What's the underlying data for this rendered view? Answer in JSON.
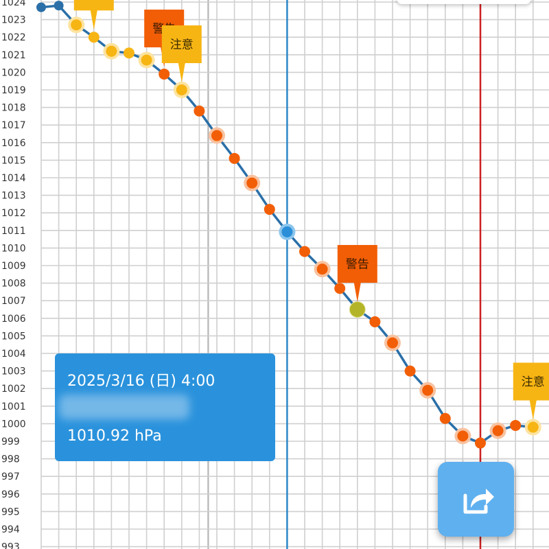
{
  "chart_data": {
    "type": "line",
    "ylim": [
      993,
      1024
    ],
    "y_ticks": [
      1024,
      1023,
      1022,
      1021,
      1020,
      1019,
      1018,
      1017,
      1016,
      1015,
      1014,
      1013,
      1012,
      1011,
      1010,
      1009,
      1008,
      1007,
      1006,
      1005,
      1004,
      1003,
      1002,
      1001,
      1000,
      999,
      998,
      997,
      996,
      995,
      994,
      993
    ],
    "series": [
      {
        "values": [
          1023.7,
          1023.8,
          1022.7,
          1022.0,
          1021.2,
          1021.1,
          1020.7,
          1019.9,
          1019.0,
          1017.8,
          1016.4,
          1015.1,
          1013.7,
          1012.2,
          1010.92,
          1009.8,
          1008.8,
          1007.7,
          1006.5,
          1005.8,
          1004.6,
          1003.0,
          1001.9,
          1000.3,
          999.3,
          998.9,
          999.6,
          999.9,
          999.8
        ],
        "point_levels": [
          "normal",
          "normal",
          "caution",
          "caution",
          "caution",
          "caution",
          "caution",
          "warning",
          "caution",
          "warning",
          "warning",
          "warning",
          "warning",
          "warning",
          "selected",
          "warning",
          "warning",
          "warning",
          "mixed",
          "warning",
          "warning",
          "warning",
          "warning",
          "warning",
          "warning",
          "warning",
          "warning",
          "warning",
          "caution"
        ]
      }
    ],
    "flags": [
      {
        "label": "",
        "level": "caution",
        "point": 3
      },
      {
        "label": "警告",
        "level": "warning",
        "point": 7
      },
      {
        "label": "注意",
        "level": "caution",
        "point": 8
      },
      {
        "label": "警告",
        "level": "warning",
        "point": 18
      },
      {
        "label": "注意",
        "level": "caution",
        "point": 28
      }
    ],
    "vertical_markers": [
      {
        "kind": "current",
        "color": "#2a87c8"
      },
      {
        "kind": "min-pressure",
        "color": "#cc1f1f"
      }
    ],
    "grid": true
  },
  "colors": {
    "line": "#2a6fa8",
    "normal": "#2a6fa8",
    "caution": "#f7b514",
    "warning": "#f25e05",
    "selected": "#2a8fd8",
    "mixed": "#b4b428",
    "tooltip_bg": "#2a92dc"
  },
  "tooltip": {
    "date": "2025/3/16 (日) 4:00",
    "value": "1010.92 hPa"
  },
  "share_button": {
    "icon": "share-icon"
  }
}
